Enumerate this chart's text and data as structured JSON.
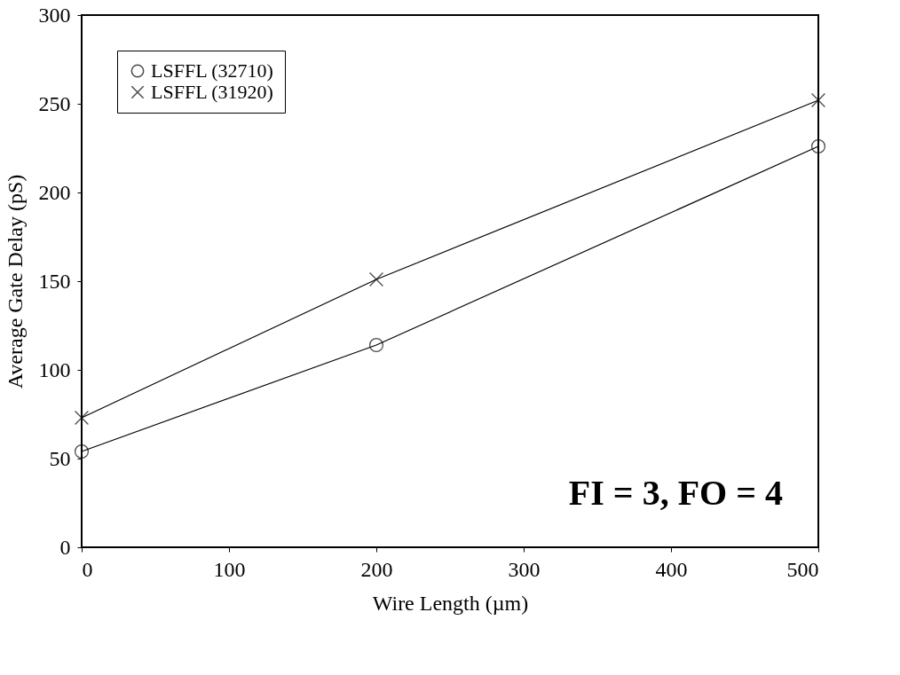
{
  "chart_data": {
    "type": "line",
    "xlabel": "Wire Length (µm)",
    "ylabel": "Average Gate Delay (pS)",
    "x": [
      0,
      200,
      500
    ],
    "series": [
      {
        "name": "LSFFL (32710)",
        "color": "#000000",
        "marker": "circle",
        "values": [
          54,
          114,
          226
        ]
      },
      {
        "name": "LSFFL (31920)",
        "color": "#000000",
        "marker": "cross",
        "values": [
          73,
          151,
          252
        ]
      }
    ],
    "xlim": [
      0,
      500
    ],
    "xticks": [
      0,
      100,
      200,
      300,
      400,
      500
    ],
    "ylim": [
      0,
      300
    ],
    "yticks": [
      0,
      50,
      100,
      150,
      200,
      250,
      300
    ],
    "grid": false,
    "legend": "top left",
    "annotations": [
      "FI = 3, FO = 4"
    ]
  }
}
